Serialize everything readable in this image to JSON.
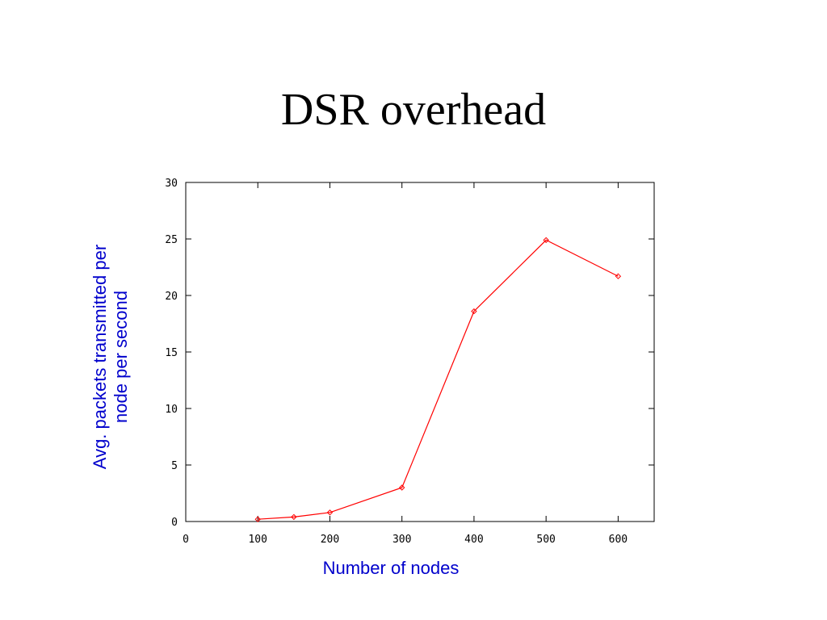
{
  "slide": {
    "title": "DSR overhead"
  },
  "chart_data": {
    "type": "line",
    "title": "",
    "xlabel": "Number of nodes",
    "ylabel_lines": [
      "Avg. packets transmitted per",
      "node per second"
    ],
    "xlim": [
      0,
      650
    ],
    "ylim": [
      0,
      30
    ],
    "x_ticks": [
      0,
      100,
      200,
      300,
      400,
      500,
      600
    ],
    "y_ticks": [
      0,
      5,
      10,
      15,
      20,
      25,
      30
    ],
    "grid": false,
    "legend": "none",
    "series": [
      {
        "color": "#ff0000",
        "x": [
          100,
          150,
          200,
          300,
          400,
          500,
          600
        ],
        "y": [
          0.2,
          0.4,
          0.8,
          3.0,
          18.6,
          24.9,
          21.7
        ]
      }
    ]
  }
}
